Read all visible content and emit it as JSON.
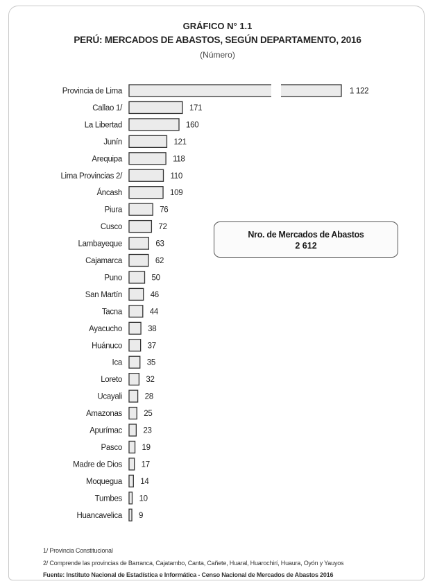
{
  "chart_data": {
    "type": "bar",
    "orientation": "horizontal",
    "title": "GRÁFICO N° 1.1",
    "subtitle": "PERÚ: MERCADOS DE ABASTOS, SEGÚN DEPARTAMENTO, 2016",
    "unit": "(Número)",
    "categories": [
      "Provincia de Lima",
      "Callao 1/",
      "La Libertad",
      "Junín",
      "Arequipa",
      "Lima Provincias 2/",
      "Áncash",
      "Piura",
      "Cusco",
      "Lambayeque",
      "Cajamarca",
      "Puno",
      "San Martín",
      "Tacna",
      "Ayacucho",
      "Huánuco",
      "Ica",
      "Loreto",
      "Ucayali",
      "Amazonas",
      "Apurímac",
      "Pasco",
      "Madre de Dios",
      "Moquegua",
      "Tumbes",
      "Huancavelica"
    ],
    "values": [
      1122,
      171,
      160,
      121,
      118,
      110,
      109,
      76,
      72,
      63,
      62,
      50,
      46,
      44,
      38,
      37,
      35,
      32,
      28,
      25,
      23,
      19,
      17,
      14,
      10,
      9
    ],
    "value_labels": [
      "1 122",
      "171",
      "160",
      "121",
      "118",
      "110",
      "109",
      "76",
      "72",
      "63",
      "62",
      "50",
      "46",
      "44",
      "38",
      "37",
      "35",
      "32",
      "28",
      "25",
      "23",
      "19",
      "17",
      "14",
      "10",
      "9"
    ],
    "axis_break_after": 171,
    "legend": "none",
    "grid": false,
    "bar_fill": "#ebebeb",
    "bar_stroke": "#333333"
  },
  "infobox": {
    "label": "Nro. de Mercados de Abastos",
    "value": "2 612"
  },
  "notes": {
    "n1": "1/ Provincia Constitucional",
    "n2": "2/ Comprende las provincias de Barranca, Cajatambo, Canta, Cañete, Huaral, Huarochirí, Huaura, Oyón y Yauyos",
    "source": "Fuente: Instituto Nacional de Estadística e Informática - Censo Nacional de Mercados de Abastos 2016"
  }
}
